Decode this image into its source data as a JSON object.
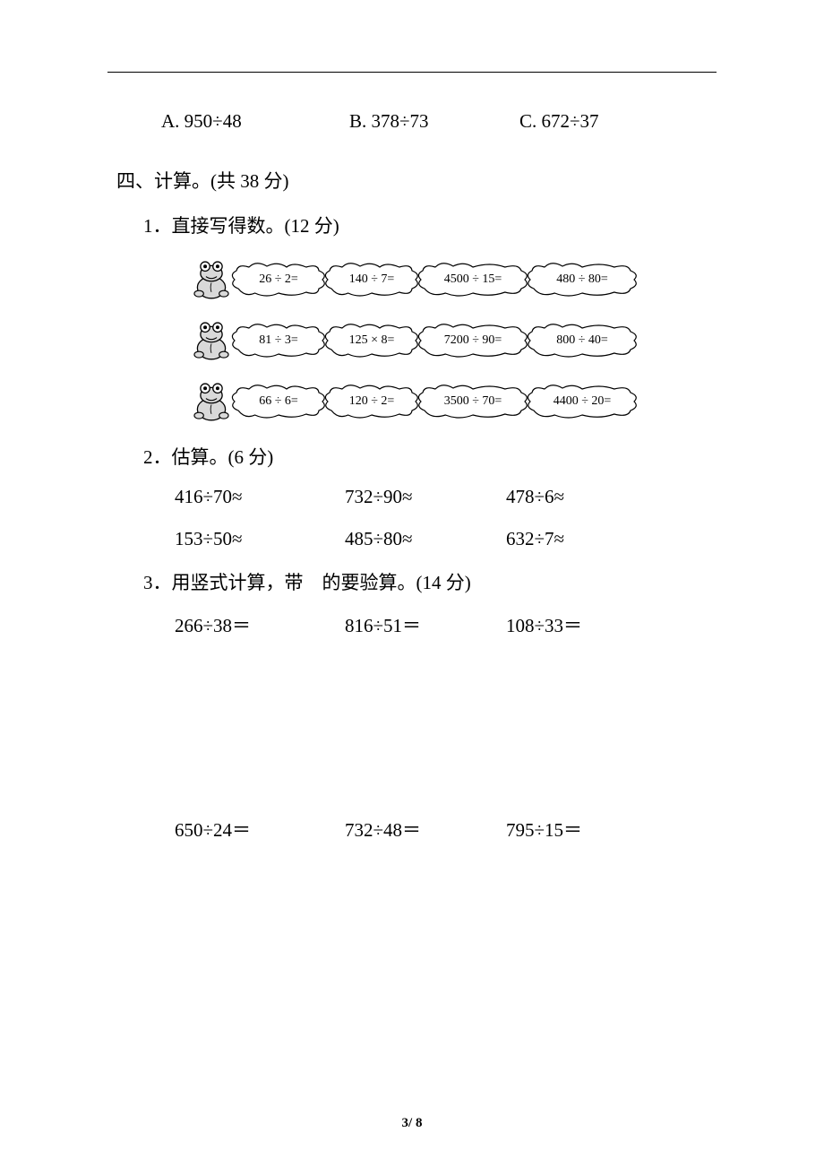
{
  "colors": {
    "text": "#000000",
    "background": "#ffffff",
    "rule": "#000000",
    "frog_body": "#d9d9d9",
    "frog_outline": "#000000",
    "cloud_outline": "#000000",
    "cloud_fill": "#ffffff"
  },
  "options": {
    "a": "A. 950÷48",
    "b": "B. 378÷73",
    "c": "C. 672÷37"
  },
  "section4": {
    "title": "四、计算。(共 38 分)",
    "q1": {
      "title": "1．直接写得数。(12 分)",
      "rows": [
        [
          "26 ÷ 2=",
          "140 ÷ 7=",
          "4500 ÷ 15=",
          "480 ÷ 80="
        ],
        [
          "81 ÷ 3=",
          "125 × 8=",
          "7200 ÷ 90=",
          "800 ÷ 40="
        ],
        [
          "66 ÷ 6=",
          "120 ÷ 2=",
          "3500 ÷ 70=",
          "4400 ÷ 20="
        ]
      ],
      "cloud_widths": [
        110,
        110,
        128,
        128
      ]
    },
    "q2": {
      "title": "2．估算。(6 分)",
      "items": [
        "416÷70≈",
        "732÷90≈",
        "478÷6≈",
        "153÷50≈",
        "485÷80≈",
        "632÷7≈"
      ]
    },
    "q3": {
      "title": "3．用竖式计算，带　的要验算。(14 分)",
      "row1": [
        "266÷38＝",
        "816÷51＝",
        "108÷33＝"
      ],
      "row2": [
        "650÷24＝",
        "732÷48＝",
        "795÷15＝"
      ]
    }
  },
  "footer": {
    "page": "3",
    "sep": "/ ",
    "total": "8"
  }
}
